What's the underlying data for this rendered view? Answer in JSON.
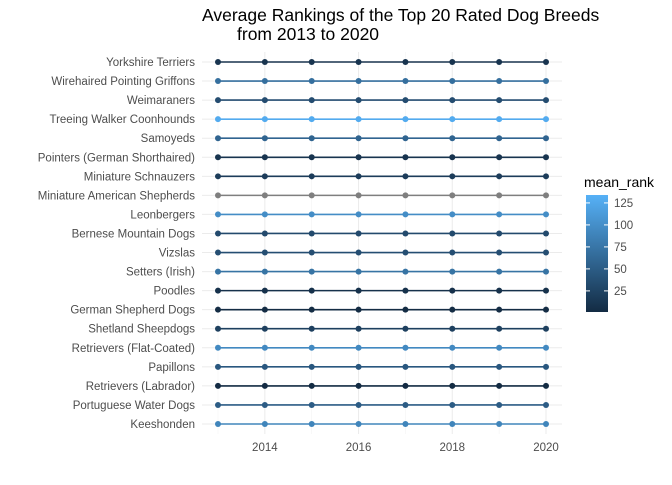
{
  "chart_data": {
    "type": "line",
    "title": "Average Rankings of the Top 20 Rated Dog Breeds",
    "subtitle": "from 2013 to 2020",
    "xlabel": "",
    "ylabel": "",
    "x": [
      2013,
      2014,
      2015,
      2016,
      2017,
      2018,
      2019,
      2020
    ],
    "xlim": [
      2013,
      2020
    ],
    "x_ticks": [
      2014,
      2016,
      2018,
      2020
    ],
    "grid": true,
    "legend": {
      "title": "mean_rank",
      "placement": "right",
      "ticks": [
        25,
        50,
        75,
        100,
        125
      ],
      "range": [
        1,
        134
      ],
      "colors": [
        "#132B43",
        "#56B1F7"
      ]
    },
    "series": [
      {
        "name": "Yorkshire Terriers",
        "mean_rank": 10
      },
      {
        "name": "Wirehaired Pointing Griffons",
        "mean_rank": 68
      },
      {
        "name": "Weimaraners",
        "mean_rank": 34
      },
      {
        "name": "Treeing Walker Coonhounds",
        "mean_rank": 128
      },
      {
        "name": "Samoyeds",
        "mean_rank": 58
      },
      {
        "name": "Pointers (German Shorthaired)",
        "mean_rank": 10
      },
      {
        "name": "Miniature Schnauzers",
        "mean_rank": 18
      },
      {
        "name": "Miniature American Shepherds",
        "mean_rank": null
      },
      {
        "name": "Leonbergers",
        "mean_rank": 98
      },
      {
        "name": "Bernese Mountain Dogs",
        "mean_rank": 32
      },
      {
        "name": "Vizslas",
        "mean_rank": 36
      },
      {
        "name": "Setters (Irish)",
        "mean_rank": 73
      },
      {
        "name": "Poodles",
        "mean_rank": 7
      },
      {
        "name": "German Shepherd Dogs",
        "mean_rank": 2
      },
      {
        "name": "Shetland Sheepdogs",
        "mean_rank": 22
      },
      {
        "name": "Retrievers (Flat-Coated)",
        "mean_rank": 94
      },
      {
        "name": "Papillons",
        "mean_rank": 45
      },
      {
        "name": "Retrievers (Labrador)",
        "mean_rank": 1
      },
      {
        "name": "Portuguese Water Dogs",
        "mean_rank": 50
      },
      {
        "name": "Keeshonden",
        "mean_rank": 90
      }
    ],
    "na_color": "#7f7f7f"
  }
}
